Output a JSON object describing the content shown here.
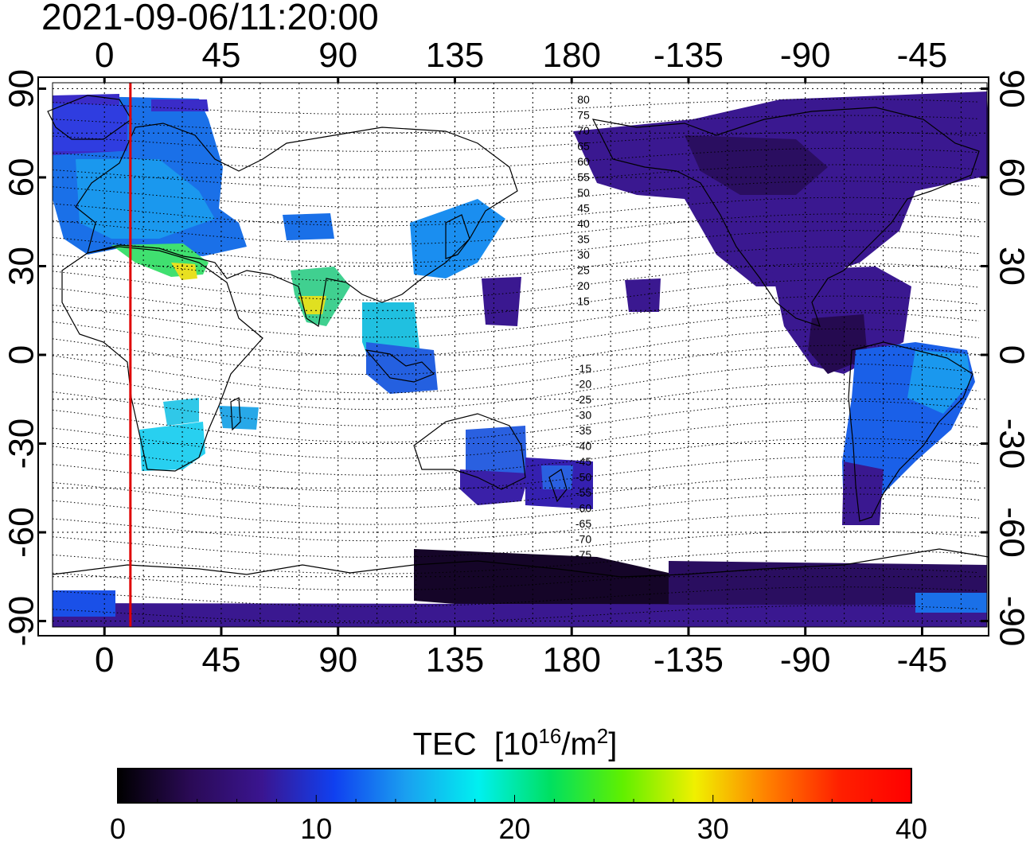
{
  "timestamp": "2021-09-06/11:20:00",
  "map": {
    "lon_ticks_top": [
      "0",
      "45",
      "90",
      "135",
      "180",
      "-135",
      "-90",
      "-45"
    ],
    "lon_ticks_bottom": [
      "0",
      "45",
      "90",
      "135",
      "180",
      "-135",
      "-90",
      "-45"
    ],
    "lat_ticks_left": [
      "90",
      "60",
      "30",
      "0",
      "-30",
      "-60",
      "-90"
    ],
    "lat_ticks_right": [
      "90",
      "60",
      "30",
      "0",
      "-30",
      "-60",
      "-90"
    ],
    "lon_range": [
      -20,
      340
    ],
    "lat_range": [
      -92,
      92
    ],
    "red_meridian_lon": 10,
    "red_line_color": "#e00000",
    "contour_labels_north": [
      "80",
      "75",
      "70",
      "65",
      "60",
      "55",
      "50",
      "45",
      "40",
      "35",
      "30",
      "25",
      "20",
      "15"
    ],
    "contour_labels_south": [
      "-15",
      "-20",
      "-25",
      "-30",
      "-35",
      "-40",
      "-45",
      "-50",
      "-55",
      "-60",
      "-65",
      "-70",
      "-75"
    ]
  },
  "colorbar": {
    "title": "TEC",
    "unit_prefix": "[10",
    "unit_exp": "16",
    "unit_mid": "/m",
    "unit_exp2": "2",
    "unit_suffix": "]",
    "ticks": [
      "0",
      "10",
      "20",
      "30",
      "40"
    ],
    "range": [
      0,
      40
    ],
    "stops": [
      "#000000",
      "#2a0a55",
      "#3a1590",
      "#1040f0",
      "#1aa0f0",
      "#00f0f0",
      "#00e060",
      "#60f000",
      "#f0f000",
      "#ff8000",
      "#ff2000",
      "#ff0000"
    ]
  }
}
